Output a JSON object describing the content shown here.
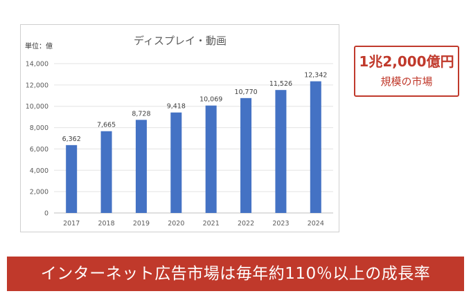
{
  "chart_data": {
    "type": "bar",
    "title": "ディスプレイ・動画",
    "unit_label": "単位：億",
    "categories": [
      "2017",
      "2018",
      "2019",
      "2020",
      "2021",
      "2022",
      "2023",
      "2024"
    ],
    "values": [
      6362,
      7665,
      8728,
      9418,
      10069,
      10770,
      11526,
      12342
    ],
    "data_labels": [
      "6,362",
      "7,665",
      "8,728",
      "9,418",
      "10,069",
      "10,770",
      "11,526",
      "12,342"
    ],
    "y_ticks": [
      0,
      2000,
      4000,
      6000,
      8000,
      10000,
      12000,
      14000
    ],
    "y_tick_labels": [
      "0",
      "2,000",
      "4,000",
      "6,000",
      "8,000",
      "10,000",
      "12,000",
      "14,000"
    ],
    "ylim": [
      0,
      14000
    ],
    "grid": true,
    "legend": "none",
    "bar_color": "#4472c4"
  },
  "badge": {
    "line1": "1兆2,000億円",
    "line2": "規模の市場",
    "color": "#c0392b"
  },
  "banner": {
    "text": "インターネット広告市場は毎年約110％以上の成長率",
    "color": "#c0392b"
  }
}
